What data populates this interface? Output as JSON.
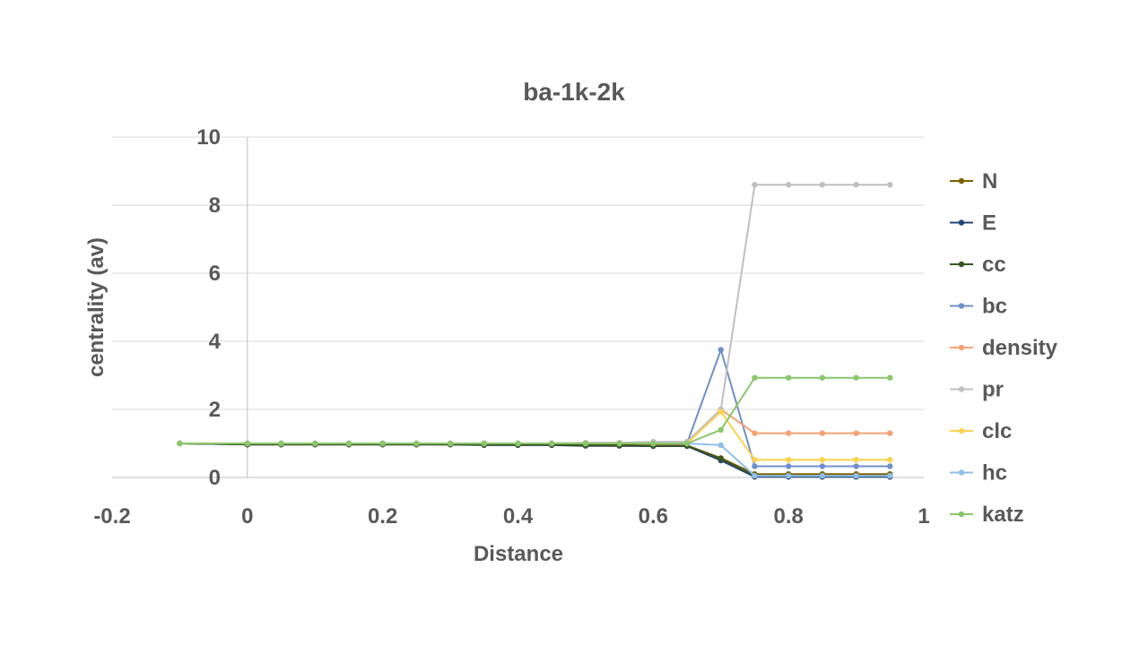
{
  "chart_data": {
    "type": "line",
    "title": "ba-1k-2k",
    "xlabel": "Distance",
    "ylabel": "centrality (av)",
    "xlim": [
      -0.2,
      1
    ],
    "ylim": [
      0,
      10
    ],
    "xticks": [
      "-0.2",
      "0",
      "0.2",
      "0.4",
      "0.6",
      "0.8",
      "1"
    ],
    "yticks": [
      "0",
      "2",
      "4",
      "6",
      "8",
      "10"
    ],
    "grid": true,
    "legend_position": "right",
    "x": [
      -0.1,
      0,
      0.05,
      0.1,
      0.15,
      0.2,
      0.25,
      0.3,
      0.35,
      0.4,
      0.45,
      0.5,
      0.55,
      0.6,
      0.65,
      0.7,
      0.75,
      0.8,
      0.85,
      0.9,
      0.95
    ],
    "series": [
      {
        "name": "N",
        "color": "#7f6000",
        "values": [
          1,
          0.97,
          0.97,
          0.97,
          0.97,
          0.97,
          0.97,
          0.97,
          0.96,
          0.96,
          0.96,
          0.95,
          0.95,
          0.94,
          0.94,
          0.57,
          0.1,
          0.1,
          0.1,
          0.1,
          0.1
        ]
      },
      {
        "name": "E",
        "color": "#264478",
        "values": [
          1,
          0.97,
          0.97,
          0.97,
          0.97,
          0.97,
          0.97,
          0.97,
          0.95,
          0.95,
          0.95,
          0.93,
          0.93,
          0.92,
          0.92,
          0.5,
          0.02,
          0.02,
          0.02,
          0.02,
          0.02
        ]
      },
      {
        "name": "cc",
        "color": "#375623",
        "values": [
          1,
          0.97,
          0.97,
          0.97,
          0.97,
          0.97,
          0.97,
          0.97,
          0.96,
          0.96,
          0.96,
          0.94,
          0.94,
          0.93,
          0.93,
          0.55,
          0.05,
          0.05,
          0.05,
          0.05,
          0.05
        ]
      },
      {
        "name": "bc",
        "color": "#6f8fc9",
        "values": [
          1,
          1,
          1,
          1,
          1,
          1,
          1,
          1,
          1,
          1,
          1,
          1,
          1,
          1,
          1,
          3.75,
          0.33,
          0.33,
          0.33,
          0.33,
          0.33
        ]
      },
      {
        "name": "density",
        "color": "#f4a173",
        "values": [
          1,
          1,
          1,
          1,
          1,
          1,
          1,
          1,
          1,
          1,
          1,
          1.02,
          1.02,
          1.04,
          1.04,
          2.0,
          1.3,
          1.3,
          1.3,
          1.3,
          1.3
        ]
      },
      {
        "name": "pr",
        "color": "#bfbfbf",
        "values": [
          1,
          1,
          1,
          1,
          1,
          1,
          1,
          1,
          1,
          1,
          1,
          1.02,
          1.02,
          1.05,
          1.05,
          2.0,
          8.6,
          8.6,
          8.6,
          8.6,
          8.6
        ]
      },
      {
        "name": "clc",
        "color": "#ffd24d",
        "values": [
          1,
          1,
          1,
          1,
          1,
          1,
          1,
          1,
          1,
          1,
          1,
          1,
          1,
          1,
          1,
          1.93,
          0.52,
          0.52,
          0.52,
          0.52,
          0.52
        ]
      },
      {
        "name": "hc",
        "color": "#8fbfe8",
        "values": [
          1,
          1,
          1,
          1,
          1,
          1,
          1,
          1,
          1,
          1,
          1,
          1,
          1,
          1,
          1,
          0.95,
          0.05,
          0.05,
          0.05,
          0.05,
          0.05
        ]
      },
      {
        "name": "katz",
        "color": "#8ac66b",
        "values": [
          1,
          1,
          1,
          1,
          1,
          1,
          1,
          1,
          1,
          1,
          1,
          1,
          1,
          1,
          1,
          1.4,
          2.93,
          2.93,
          2.93,
          2.93,
          2.93
        ]
      }
    ]
  }
}
